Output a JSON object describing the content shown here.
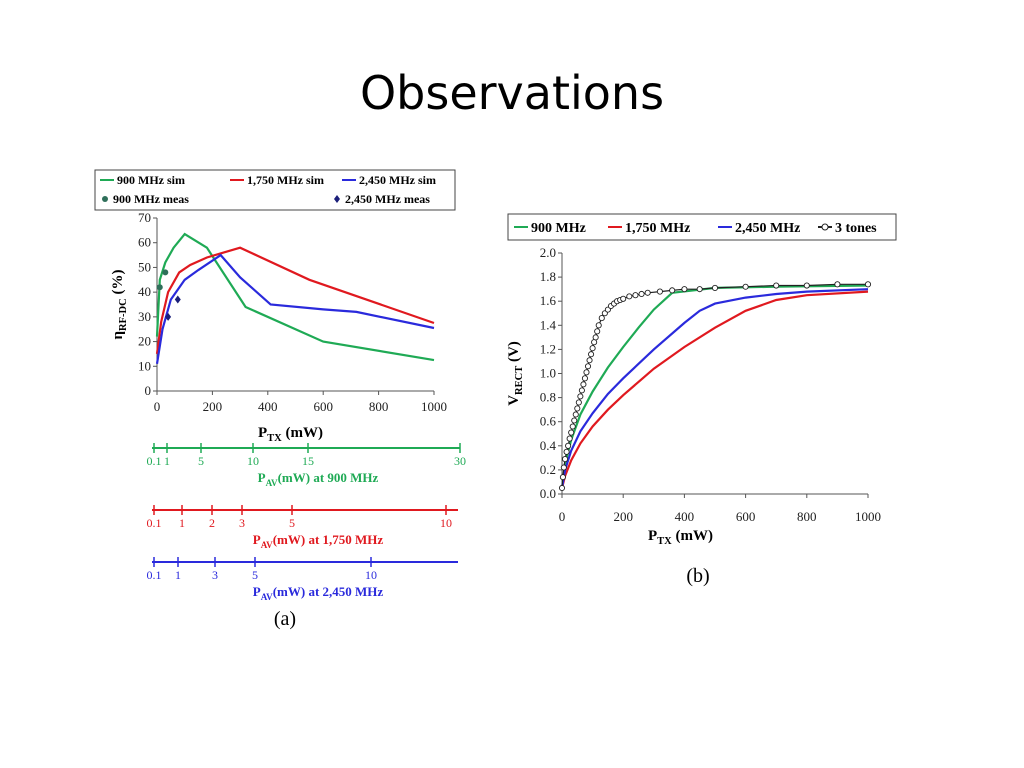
{
  "slide": {
    "title": "Observations"
  },
  "colors": {
    "green": "#1faa55",
    "red": "#e0191f",
    "blue": "#2a2adc",
    "black": "#222222"
  },
  "chart_data": [
    {
      "type": "line",
      "panel_label": "(a)",
      "xlabel_main": "P",
      "xlabel_sub": "TX",
      "xlabel_unit": " (mW)",
      "ylabel_main": "η",
      "ylabel_sub": "RF-DC",
      "ylabel_unit": " (%)",
      "xlim": [
        0,
        1000
      ],
      "ylim": [
        0,
        70
      ],
      "xticks": [
        0,
        200,
        400,
        600,
        800,
        1000
      ],
      "yticks": [
        0,
        10,
        20,
        30,
        40,
        50,
        60,
        70
      ],
      "legend": [
        {
          "label": "900 MHz sim",
          "color": "green",
          "marker": "line"
        },
        {
          "label": "1,750 MHz sim",
          "color": "red",
          "marker": "line"
        },
        {
          "label": "2,450 MHz sim",
          "color": "blue",
          "marker": "line"
        },
        {
          "label": "900 MHz meas",
          "color": "#2f6f5a",
          "marker": "circle"
        },
        {
          "label": "2,450 MHz meas",
          "color": "#1b1f7a",
          "marker": "diamond"
        }
      ],
      "series": [
        {
          "name": "900 MHz sim",
          "color": "green",
          "x": [
            0,
            10,
            30,
            60,
            100,
            180,
            320,
            600,
            1000
          ],
          "y": [
            22,
            45,
            52,
            58,
            63.5,
            58,
            34,
            20,
            12.5
          ]
        },
        {
          "name": "1,750 MHz sim",
          "color": "red",
          "x": [
            0,
            15,
            40,
            80,
            120,
            180,
            240,
            300,
            550,
            1000
          ],
          "y": [
            15,
            28,
            40,
            48,
            51,
            54,
            56,
            58,
            45,
            27.5
          ]
        },
        {
          "name": "2,450 MHz sim",
          "color": "blue",
          "x": [
            0,
            20,
            50,
            100,
            150,
            230,
            300,
            410,
            600,
            720,
            1000
          ],
          "y": [
            11,
            25,
            37,
            45,
            49,
            55,
            46,
            35,
            33,
            32,
            25.5
          ]
        }
      ],
      "measured": [
        {
          "name": "900 MHz meas",
          "marker": "circle",
          "color": "#2f6f5a",
          "x": [
            10,
            30
          ],
          "y": [
            42,
            48
          ]
        },
        {
          "name": "2,450 MHz meas",
          "marker": "diamond",
          "color": "#1b1f7a",
          "x": [
            40,
            75
          ],
          "y": [
            30,
            37
          ]
        }
      ],
      "secondary_axes": [
        {
          "color": "green",
          "label_main": "P",
          "label_sub": "AV",
          "label_rest": "(mW) at 900 MHz",
          "ticks": [
            "0.1",
            "1",
            "5",
            "10",
            "15",
            "30"
          ]
        },
        {
          "color": "red",
          "label_main": "P",
          "label_sub": "AV",
          "label_rest": "(mW) at 1,750 MHz",
          "ticks": [
            "0.1",
            "1",
            "2",
            "3",
            "5",
            "10"
          ]
        },
        {
          "color": "blue",
          "label_main": "P",
          "label_sub": "AV",
          "label_rest": "(mW) at 2,450 MHz",
          "ticks": [
            "0.1",
            "1",
            "3",
            "5",
            "10"
          ]
        }
      ]
    },
    {
      "type": "line",
      "panel_label": "(b)",
      "xlabel_main": "P",
      "xlabel_sub": "TX",
      "xlabel_unit": " (mW)",
      "ylabel_main": "V",
      "ylabel_sub": "RECT",
      "ylabel_unit": " (V)",
      "xlim": [
        0,
        1000
      ],
      "ylim": [
        0,
        2.0
      ],
      "xticks": [
        0,
        200,
        400,
        600,
        800,
        1000
      ],
      "yticks": [
        "0.0",
        "0.2",
        "0.4",
        "0.6",
        "0.8",
        "1.0",
        "1.2",
        "1.4",
        "1.6",
        "1.8",
        "2.0"
      ],
      "legend": [
        {
          "label": "900 MHz",
          "color": "green"
        },
        {
          "label": "1,750 MHz",
          "color": "red"
        },
        {
          "label": "2,450 MHz",
          "color": "blue"
        },
        {
          "label": "3 tones",
          "color": "black",
          "marker": "circle"
        }
      ],
      "series": [
        {
          "name": "900 MHz",
          "color": "green",
          "x": [
            0,
            10,
            30,
            60,
            100,
            150,
            200,
            250,
            300,
            360,
            500,
            700,
            1000
          ],
          "y": [
            0.05,
            0.25,
            0.45,
            0.66,
            0.85,
            1.05,
            1.22,
            1.38,
            1.53,
            1.67,
            1.71,
            1.72,
            1.73
          ]
        },
        {
          "name": "1,750 MHz",
          "color": "red",
          "x": [
            0,
            10,
            30,
            60,
            100,
            150,
            200,
            300,
            400,
            500,
            600,
            700,
            800,
            1000
          ],
          "y": [
            0.05,
            0.15,
            0.28,
            0.42,
            0.56,
            0.7,
            0.82,
            1.04,
            1.22,
            1.38,
            1.52,
            1.61,
            1.65,
            1.68
          ]
        },
        {
          "name": "2,450 MHz",
          "color": "blue",
          "x": [
            0,
            10,
            30,
            60,
            100,
            150,
            200,
            300,
            400,
            450,
            500,
            600,
            700,
            800,
            1000
          ],
          "y": [
            0.05,
            0.2,
            0.36,
            0.52,
            0.67,
            0.83,
            0.96,
            1.2,
            1.42,
            1.52,
            1.58,
            1.63,
            1.66,
            1.68,
            1.7
          ]
        },
        {
          "name": "3 tones",
          "color": "black",
          "marker": "circle",
          "x": [
            0,
            3,
            6,
            10,
            15,
            20,
            25,
            30,
            35,
            40,
            45,
            50,
            55,
            60,
            65,
            70,
            75,
            80,
            85,
            90,
            95,
            100,
            105,
            110,
            115,
            120,
            130,
            140,
            150,
            160,
            170,
            180,
            190,
            200,
            220,
            240,
            260,
            280,
            320,
            360,
            400,
            450,
            500,
            600,
            700,
            800,
            900,
            1000
          ],
          "y": [
            0.05,
            0.14,
            0.22,
            0.29,
            0.35,
            0.4,
            0.46,
            0.51,
            0.56,
            0.61,
            0.66,
            0.71,
            0.76,
            0.81,
            0.86,
            0.91,
            0.96,
            1.01,
            1.06,
            1.11,
            1.16,
            1.21,
            1.26,
            1.3,
            1.35,
            1.4,
            1.46,
            1.5,
            1.53,
            1.56,
            1.58,
            1.6,
            1.61,
            1.62,
            1.64,
            1.65,
            1.66,
            1.67,
            1.68,
            1.69,
            1.7,
            1.7,
            1.71,
            1.72,
            1.73,
            1.73,
            1.74,
            1.74
          ]
        }
      ]
    }
  ]
}
